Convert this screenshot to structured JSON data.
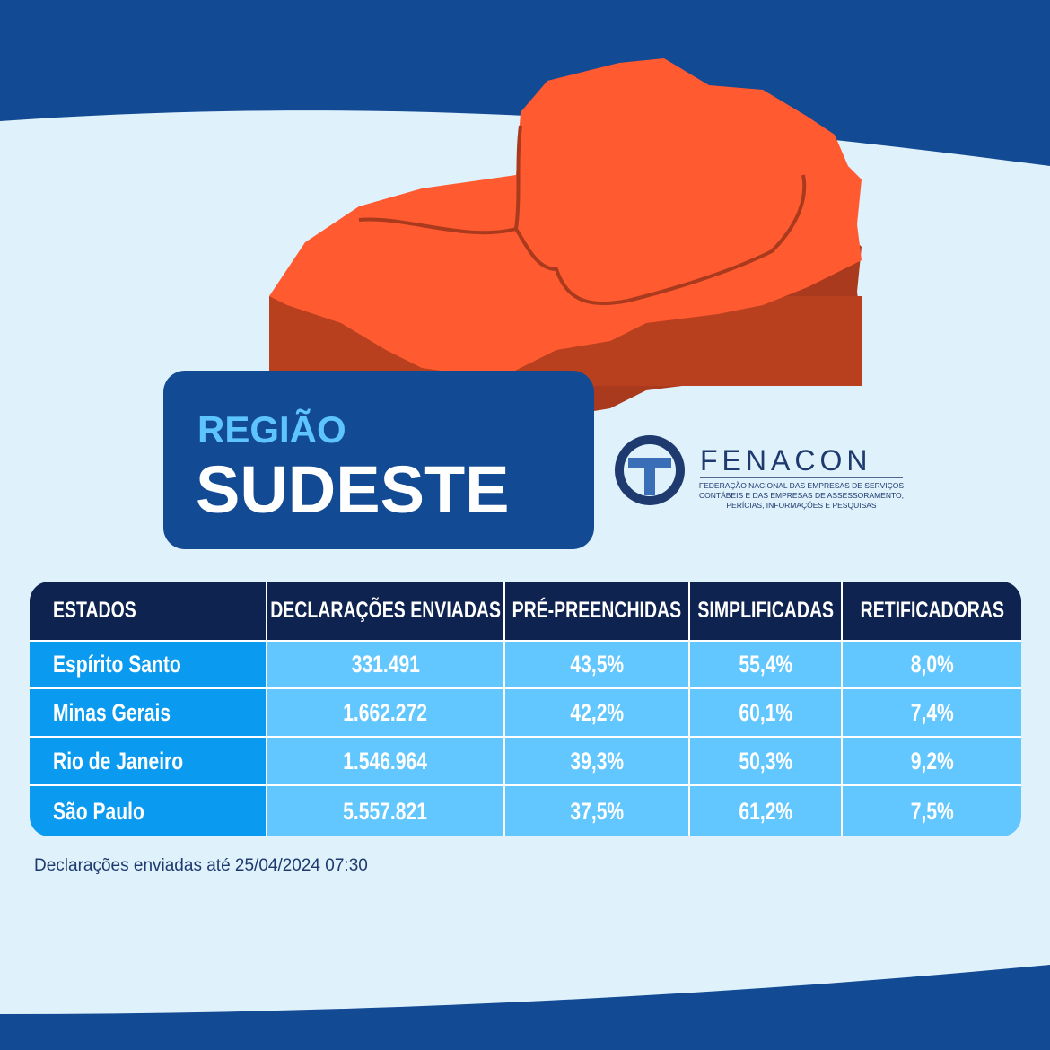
{
  "header": {
    "region_label": "REGIÃO",
    "region_name": "SUDESTE"
  },
  "logo": {
    "name": "FENACON",
    "subtitle": [
      "FEDERAÇÃO NACIONAL DAS EMPRESAS DE SERVIÇOS",
      "CONTÁBEIS E DAS EMPRESAS DE ASSESSORAMENTO,",
      "PERÍCIAS, INFORMAÇÕES E PESQUISAS"
    ]
  },
  "table": {
    "columns": [
      "ESTADOS",
      "DECLARAÇÕES ENVIADAS",
      "PRÉ-PREENCHIDAS",
      "SIMPLIFICADAS",
      "RETIFICADORAS"
    ],
    "rows": [
      [
        "Espírito Santo",
        "331.491",
        "43,5%",
        "55,4%",
        "8,0%"
      ],
      [
        "Minas Gerais",
        "1.662.272",
        "42,2%",
        "60,1%",
        "7,4%"
      ],
      [
        "Rio de Janeiro",
        "1.546.964",
        "39,3%",
        "50,3%",
        "9,2%"
      ],
      [
        "São Paulo",
        "5.557.821",
        "37,5%",
        "61,2%",
        "7,5%"
      ]
    ]
  },
  "footnote": "Declarações enviadas até 25/04/2024 07:30"
}
